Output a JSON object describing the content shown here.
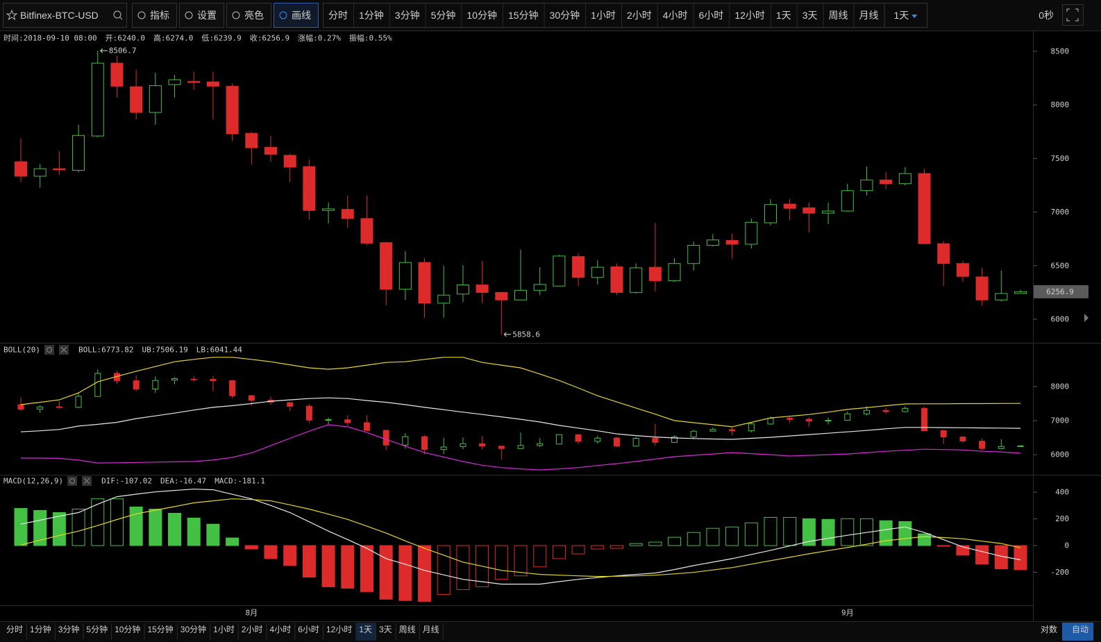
{
  "toolbar": {
    "symbol": "Bitfinex-BTC-USD",
    "buttons": [
      "指标",
      "设置",
      "亮色",
      "画线"
    ],
    "active_button": "画线",
    "intervals": [
      "分时",
      "1分钟",
      "3分钟",
      "5分钟",
      "10分钟",
      "15分钟",
      "30分钟",
      "1小时",
      "2小时",
      "4小时",
      "6小时",
      "12小时",
      "1天",
      "3天",
      "周线",
      "月线"
    ],
    "active_interval": "1天",
    "dropdown": "1天",
    "timer": "0秒"
  },
  "info": [
    {
      "label": "时间:",
      "value": "2018-09-10 08:00"
    },
    {
      "label": "开:",
      "value": "6240.0"
    },
    {
      "label": "高:",
      "value": "6274.0"
    },
    {
      "label": "低:",
      "value": "6239.9"
    },
    {
      "label": "收:",
      "value": "6256.9"
    },
    {
      "label": "涨幅:",
      "value": "0.27%",
      "color": "#2fbf4a"
    },
    {
      "label": "振幅:",
      "value": "0.55%"
    }
  ],
  "chart_data": [
    {
      "type": "candlestick",
      "up_color": "#44c044",
      "down_color": "#dd2a2a",
      "categories": [
        null,
        null,
        null,
        null,
        null,
        null,
        null,
        null,
        null,
        null,
        null,
        null,
        "8月",
        null,
        null,
        null,
        null,
        null,
        null,
        null,
        null,
        null,
        null,
        null,
        null,
        null,
        null,
        null,
        null,
        null,
        null,
        null,
        null,
        null,
        null,
        null,
        null,
        null,
        null,
        null,
        null,
        null,
        null,
        "9月",
        null,
        null,
        null,
        null,
        null,
        null,
        null,
        null,
        null
      ],
      "open": [
        7470,
        7335,
        7405,
        7390,
        7710,
        8390,
        8170,
        7930,
        8190,
        8220,
        8215,
        8175,
        7735,
        7605,
        7530,
        7425,
        7015,
        7025,
        6940,
        6715,
        6280,
        6530,
        6150,
        6235,
        6320,
        6250,
        6180,
        6270,
        6310,
        6585,
        6390,
        6490,
        6250,
        6485,
        6360,
        6520,
        6690,
        6735,
        6700,
        6900,
        7075,
        7040,
        6990,
        7010,
        7200,
        7300,
        7265,
        7360,
        6705,
        6520,
        6395,
        6180,
        6240
      ],
      "high": [
        7690,
        7450,
        7570,
        7815,
        8506.7,
        8460,
        8330,
        8300,
        8280,
        8310,
        8310,
        8200,
        7750,
        7710,
        7545,
        7490,
        7090,
        7155,
        7155,
        6725,
        6635,
        6570,
        6500,
        6505,
        6545,
        6255,
        6650,
        6485,
        6600,
        6615,
        6550,
        6520,
        6520,
        6900,
        6570,
        6725,
        6795,
        6800,
        6940,
        7120,
        7120,
        7090,
        7090,
        7265,
        7425,
        7375,
        7420,
        7405,
        6730,
        6545,
        6480,
        6455,
        6274
      ],
      "low": [
        7280,
        7230,
        7350,
        7370,
        7700,
        8070,
        7865,
        7815,
        8070,
        8140,
        7865,
        7665,
        7445,
        7470,
        7280,
        6930,
        6895,
        6855,
        6690,
        6130,
        6180,
        6015,
        6015,
        6160,
        6150,
        5858.6,
        6180,
        6225,
        6305,
        6310,
        6325,
        6225,
        6240,
        6260,
        6350,
        6455,
        6680,
        6565,
        6660,
        6875,
        6925,
        6810,
        6890,
        7005,
        7155,
        7215,
        7250,
        6700,
        6310,
        6350,
        6125,
        6165,
        6239.9
      ],
      "close": [
        7335,
        7405,
        7395,
        7715,
        8390,
        8175,
        7930,
        8180,
        8235,
        8210,
        8175,
        7730,
        7600,
        7540,
        7420,
        7015,
        7030,
        6940,
        6710,
        6280,
        6530,
        6150,
        6225,
        6320,
        6250,
        6180,
        6270,
        6325,
        6590,
        6390,
        6485,
        6250,
        6480,
        6360,
        6520,
        6690,
        6740,
        6700,
        6905,
        7070,
        7035,
        6990,
        7010,
        7200,
        7300,
        7265,
        7360,
        6705,
        6520,
        6400,
        6180,
        6240,
        6256.9
      ],
      "ylim": [
        5786,
        8688
      ],
      "yticks": [
        6000,
        6500,
        7000,
        7500,
        8000,
        8500
      ]
    },
    {
      "type": "line",
      "title": "BOLL(20)",
      "ylim": [
        5430,
        9224
      ],
      "yticks": [
        6000,
        7000,
        8000
      ],
      "series": [
        {
          "name": "BOLL:6773.82",
          "color": "#e8e8e8",
          "values": [
            6670,
            6700,
            6740,
            6840,
            6890,
            6950,
            7060,
            7140,
            7220,
            7310,
            7390,
            7440,
            7500,
            7570,
            7610,
            7650,
            7670,
            7650,
            7590,
            7540,
            7470,
            7390,
            7320,
            7250,
            7180,
            7110,
            7040,
            6960,
            6860,
            6780,
            6700,
            6610,
            6560,
            6520,
            6490,
            6475,
            6460,
            6450,
            6480,
            6510,
            6550,
            6590,
            6630,
            6670,
            6710,
            6760,
            6800,
            6800,
            6795,
            6790,
            6785,
            6780,
            6773.82
          ]
        },
        {
          "name": "UB:7506.19",
          "color": "#e6d62a",
          "values": [
            7470,
            7540,
            7610,
            7815,
            8140,
            8300,
            8450,
            8590,
            8730,
            8800,
            8860,
            8860,
            8800,
            8730,
            8640,
            8550,
            8510,
            8550,
            8630,
            8710,
            8730,
            8800,
            8860,
            8860,
            8710,
            8630,
            8550,
            8370,
            8180,
            7960,
            7730,
            7550,
            7370,
            7190,
            7000,
            6940,
            6880,
            6820,
            6950,
            7080,
            7130,
            7180,
            7250,
            7330,
            7380,
            7440,
            7490,
            7495,
            7495,
            7500,
            7500,
            7505,
            7506.19
          ]
        },
        {
          "name": "LB:6041.44",
          "color": "#d829d8",
          "values": [
            5900,
            5900,
            5890,
            5840,
            5755,
            5760,
            5770,
            5780,
            5790,
            5800,
            5840,
            5920,
            6050,
            6265,
            6480,
            6690,
            6880,
            6820,
            6650,
            6450,
            6250,
            6060,
            5930,
            5800,
            5690,
            5620,
            5580,
            5550,
            5580,
            5620,
            5680,
            5735,
            5800,
            5870,
            5940,
            5980,
            6020,
            6060,
            6030,
            6000,
            5960,
            5980,
            6000,
            6020,
            6060,
            6100,
            6130,
            6160,
            6150,
            6140,
            6100,
            6080,
            6041.44
          ]
        }
      ]
    },
    {
      "type": "macd",
      "title": "MACD(12,26,9)",
      "ylim": [
        -447,
        520
      ],
      "yticks": [
        -200,
        0,
        200,
        400
      ],
      "up_color": "#44c044",
      "down_color": "#dd2a2a",
      "series": [
        {
          "name": "DIF:-107.02",
          "color": "#e8e8e8",
          "values": [
            160,
            190,
            220,
            247,
            310,
            366,
            385,
            402,
            413,
            423,
            418,
            384,
            350,
            300,
            247,
            178,
            108,
            45,
            -21,
            -98,
            -140,
            -186,
            -220,
            -253,
            -271,
            -289,
            -289,
            -289,
            -270,
            -253,
            -240,
            -227,
            -216,
            -206,
            -180,
            -150,
            -124,
            -98,
            -67,
            -36,
            -3,
            31,
            54,
            77,
            98,
            119,
            139,
            98,
            44,
            -10,
            -45,
            -80,
            -107.02
          ]
        },
        {
          "name": "DEA:-16.47",
          "color": "#e6d62a",
          "values": [
            5,
            40,
            75,
            108,
            150,
            195,
            237,
            265,
            292,
            320,
            335,
            350,
            345,
            335,
            305,
            273,
            235,
            196,
            145,
            93,
            35,
            -21,
            -72,
            -124,
            -155,
            -186,
            -201,
            -216,
            -222,
            -227,
            -232,
            -230,
            -227,
            -222,
            -212,
            -201,
            -183,
            -165,
            -139,
            -113,
            -88,
            -62,
            -38,
            -15,
            10,
            36,
            52,
            67,
            60,
            51,
            33,
            15,
            -16.47
          ]
        },
        {
          "name": "MACD:-181.1",
          "color": "#d829d8",
          "kind": "bar",
          "values": [
            278,
            263,
            247,
            273,
            350,
            350,
            289,
            273,
            242,
            206,
            160,
            57,
            -26,
            -98,
            -150,
            -237,
            -309,
            -320,
            -345,
            -402,
            -412,
            -418,
            -366,
            -330,
            -309,
            -253,
            -227,
            -160,
            -98,
            -62,
            -26,
            -21,
            15,
            26,
            62,
            98,
            129,
            139,
            170,
            211,
            211,
            201,
            196,
            201,
            201,
            186,
            180,
            88,
            -5,
            -72,
            -139,
            -175,
            -181.1
          ]
        }
      ]
    }
  ],
  "footer": {
    "intervals": [
      "分时",
      "1分钟",
      "3分钟",
      "5分钟",
      "10分钟",
      "15分钟",
      "30分钟",
      "1小时",
      "2小时",
      "4小时",
      "6小时",
      "12小时",
      "1天",
      "3天",
      "周线",
      "月线"
    ],
    "active_interval": "1天",
    "buttons": [
      "对数",
      "自动"
    ],
    "active_button": "自动"
  }
}
